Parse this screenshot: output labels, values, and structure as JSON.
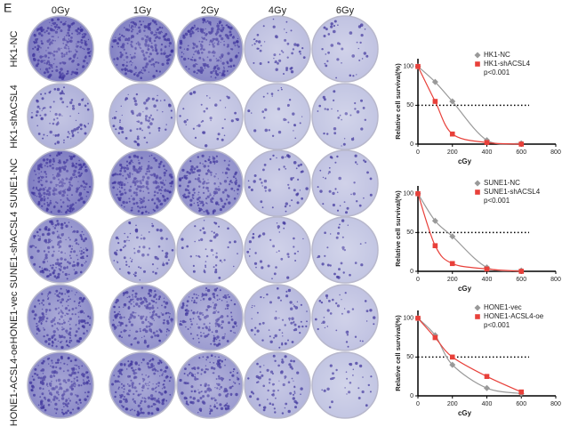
{
  "panel_label": "E",
  "column_labels": [
    "0Gy",
    "1Gy",
    "2Gy",
    "4Gy",
    "6Gy"
  ],
  "row_labels": [
    "HK1-NC",
    "HK1-shACSL4",
    "SUNE1-NC",
    "SUNE1-shACSL4",
    "HONE1-vec",
    "HONE1-ACSL4-oe"
  ],
  "chart_data": [
    {
      "type": "line",
      "x_label": "cGy",
      "y_label": "Relative cell survival(%)",
      "annotation": "p<0.001",
      "x": [
        0,
        100,
        200,
        400,
        600
      ],
      "xlim": [
        0,
        800
      ],
      "xticks": [
        0,
        200,
        400,
        600,
        800
      ],
      "ylim": [
        0,
        110
      ],
      "yticks": [
        0,
        50,
        100
      ],
      "hline": 50,
      "series": [
        {
          "name": "HK1-NC",
          "color": "#999999",
          "marker": "diamond",
          "values": [
            100,
            80,
            55,
            5,
            1
          ]
        },
        {
          "name": "HK1-shACSL4",
          "color": "#e8403a",
          "marker": "square",
          "values": [
            100,
            55,
            13,
            2,
            0
          ]
        }
      ]
    },
    {
      "type": "line",
      "x_label": "cGy",
      "y_label": "Relative cell survival(%)",
      "annotation": "p<0.001",
      "x": [
        0,
        100,
        200,
        400,
        600
      ],
      "xlim": [
        0,
        800
      ],
      "xticks": [
        0,
        200,
        400,
        600,
        800
      ],
      "ylim": [
        0,
        110
      ],
      "yticks": [
        0,
        50,
        100
      ],
      "hline": 50,
      "series": [
        {
          "name": "SUNE1-NC",
          "color": "#999999",
          "marker": "diamond",
          "values": [
            100,
            65,
            45,
            5,
            1
          ]
        },
        {
          "name": "SUNE1-shACSL4",
          "color": "#e8403a",
          "marker": "square",
          "values": [
            100,
            33,
            10,
            3,
            0
          ]
        }
      ]
    },
    {
      "type": "line",
      "x_label": "cGy",
      "y_label": "Relative cell survival(%)",
      "annotation": "p<0.001",
      "x": [
        0,
        100,
        200,
        400,
        600
      ],
      "xlim": [
        0,
        800
      ],
      "xticks": [
        0,
        200,
        400,
        600,
        800
      ],
      "ylim": [
        0,
        110
      ],
      "yticks": [
        0,
        50,
        100
      ],
      "hline": 50,
      "series": [
        {
          "name": "HONE1-vec",
          "color": "#999999",
          "marker": "diamond",
          "values": [
            100,
            78,
            40,
            10,
            3
          ]
        },
        {
          "name": "HONE1-ACSL4-oe",
          "color": "#e8403a",
          "marker": "square",
          "values": [
            100,
            75,
            50,
            25,
            5
          ]
        }
      ]
    }
  ]
}
